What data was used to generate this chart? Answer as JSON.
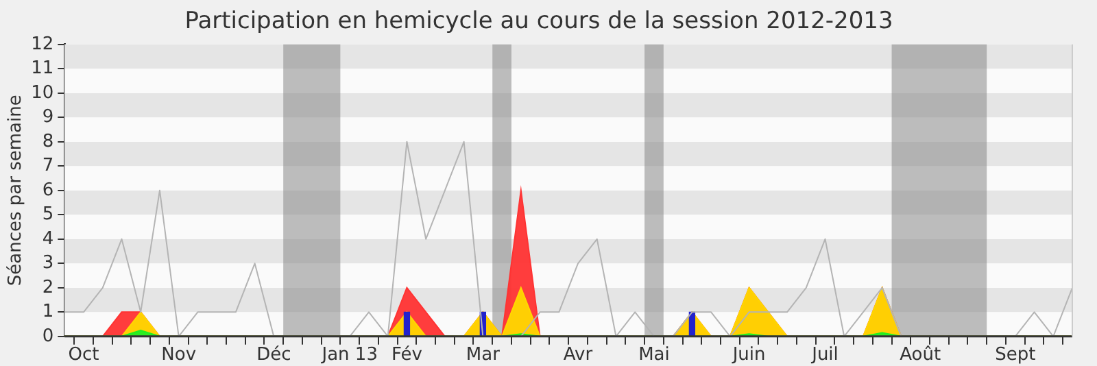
{
  "chart_data": {
    "type": "line",
    "title": "Participation en hemicycle au cours de la session 2012-2013",
    "ylabel": "Séances par semaine",
    "categories": [
      null,
      "Oct",
      null,
      null,
      null,
      null,
      "Nov",
      null,
      null,
      null,
      null,
      "Déc",
      null,
      null,
      null,
      "Jan 13",
      null,
      null,
      "Fév",
      null,
      null,
      null,
      "Mar",
      null,
      null,
      null,
      null,
      "Avr",
      null,
      null,
      null,
      "Mai",
      null,
      null,
      null,
      null,
      "Juin",
      null,
      null,
      null,
      "Juil",
      null,
      null,
      null,
      null,
      "Août",
      null,
      null,
      null,
      null,
      "Sept",
      null,
      null,
      null
    ],
    "series": [
      {
        "type": "area",
        "color": "#ff3333",
        "values": [
          0,
          0,
          0,
          1,
          1,
          0,
          0,
          0,
          0,
          0,
          0,
          0,
          0,
          0,
          0,
          0,
          0,
          0,
          2,
          1,
          0,
          0,
          1,
          0,
          6,
          0,
          0,
          0,
          0,
          0,
          0,
          0,
          0,
          1,
          0,
          0,
          2,
          1,
          0,
          0,
          0,
          0,
          0,
          2,
          0,
          0,
          0,
          0,
          0,
          0,
          0,
          0,
          0,
          0
        ]
      },
      {
        "type": "area",
        "color": "#ffd700",
        "values": [
          0,
          0,
          0,
          0,
          1,
          0,
          0,
          0,
          0,
          0,
          0,
          0,
          0,
          0,
          0,
          0,
          0,
          0,
          1,
          0,
          0,
          0,
          1,
          0,
          2,
          0,
          0,
          0,
          0,
          0,
          0,
          0,
          0,
          1,
          0,
          0,
          2,
          1,
          0,
          0,
          0,
          0,
          0,
          2,
          0,
          0,
          0,
          0,
          0,
          0,
          0,
          0,
          0,
          0
        ]
      },
      {
        "type": "area",
        "color": "#22ee22",
        "values": [
          0,
          0,
          0,
          0,
          0.25,
          0,
          0,
          0,
          0,
          0,
          0,
          0,
          0,
          0,
          0,
          0,
          0,
          0,
          0,
          0,
          0,
          0,
          0,
          0,
          0.1,
          0,
          0,
          0,
          0,
          0,
          0,
          0,
          0,
          0,
          0,
          0,
          0.1,
          0,
          0,
          0,
          0,
          0,
          0,
          0.15,
          0,
          0,
          0,
          0,
          0,
          0,
          0,
          0,
          0,
          0
        ]
      },
      {
        "type": "bar",
        "color": "#2222cc",
        "values": [
          null,
          null,
          null,
          null,
          null,
          null,
          null,
          null,
          null,
          null,
          null,
          null,
          null,
          null,
          null,
          null,
          null,
          null,
          1,
          null,
          null,
          null,
          1,
          null,
          null,
          null,
          null,
          null,
          null,
          null,
          null,
          null,
          null,
          1,
          null,
          null,
          null,
          null,
          null,
          null,
          null,
          null,
          null,
          null,
          null,
          null,
          null,
          null,
          null,
          null,
          null,
          null,
          null,
          null
        ]
      },
      {
        "color": "#b4b4b4",
        "values": [
          1,
          1,
          2,
          4,
          1,
          6,
          0,
          1,
          1,
          1,
          3,
          0,
          0,
          0,
          0,
          0,
          1,
          0,
          8,
          4,
          6,
          8,
          0,
          0,
          0,
          1,
          1,
          3,
          4,
          0,
          1,
          0,
          0,
          1,
          1,
          0,
          1,
          1,
          1,
          2,
          4,
          0,
          1,
          2,
          0,
          0,
          0,
          0,
          0,
          0,
          0,
          1,
          0,
          2
        ]
      }
    ],
    "ylim": [
      0,
      12
    ],
    "yticks": [
      0,
      1,
      2,
      3,
      4,
      5,
      6,
      7,
      8,
      9,
      10,
      11,
      12
    ],
    "legend": false,
    "marker": "none"
  }
}
